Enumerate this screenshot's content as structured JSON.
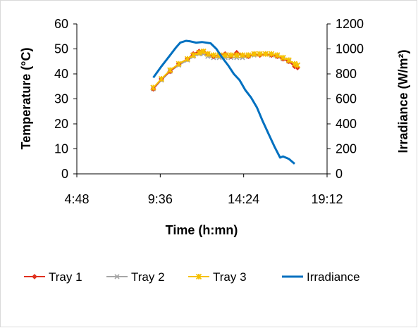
{
  "colors": {
    "tray1": "#E0301E",
    "tray2": "#A6A6A6",
    "tray3": "#F6C100",
    "irradiance": "#0070C0",
    "axis": "#000000"
  },
  "chart_data": {
    "type": "line",
    "xlabel": "Time (h:mn)",
    "ylabel_left": "Temperature (°C)",
    "ylabel_right": "Irradiance (W/m²)",
    "xlim": [
      "4:48",
      "19:12"
    ],
    "x_ticks": [
      "4:48",
      "9:36",
      "14:24",
      "19:12"
    ],
    "ylim_left": [
      0,
      60
    ],
    "y_ticks_left": [
      "0",
      "10",
      "20",
      "30",
      "40",
      "50",
      "60"
    ],
    "ylim_right": [
      0,
      1200
    ],
    "y_ticks_right": [
      "0",
      "200",
      "400",
      "600",
      "800",
      "1000",
      "1200"
    ],
    "grid": false,
    "legend": "bottom",
    "series": [
      {
        "name": "Tray 1",
        "axis": "left",
        "marker": "diamond",
        "x": [
          "9:12",
          "9:40",
          "10:10",
          "10:40",
          "11:10",
          "11:30",
          "11:50",
          "12:05",
          "12:20",
          "12:40",
          "13:00",
          "13:20",
          "13:40",
          "14:00",
          "14:20",
          "14:40",
          "15:00",
          "15:20",
          "15:40",
          "16:00",
          "16:20",
          "16:40",
          "17:00",
          "17:20",
          "17:30"
        ],
        "y": [
          34,
          38,
          41,
          44,
          46,
          48,
          49,
          49,
          48,
          47,
          47.5,
          48,
          47,
          48.5,
          47.5,
          47,
          48,
          47.5,
          48,
          47.5,
          47,
          46,
          45,
          43,
          42.5
        ]
      },
      {
        "name": "Tray 2",
        "axis": "left",
        "marker": "x",
        "x": [
          "9:12",
          "9:40",
          "10:10",
          "10:40",
          "11:10",
          "11:30",
          "11:50",
          "12:05",
          "12:20",
          "12:40",
          "13:00",
          "13:20",
          "13:40",
          "14:00",
          "14:20",
          "14:40",
          "15:00",
          "15:20",
          "15:40",
          "16:00",
          "16:20",
          "16:40",
          "17:00",
          "17:20",
          "17:30"
        ],
        "y": [
          34,
          37.5,
          41,
          43.5,
          45.5,
          47,
          48,
          48,
          47,
          46.5,
          46.5,
          46.5,
          46.5,
          46.5,
          46.5,
          47,
          47.5,
          48,
          48,
          47.5,
          47,
          46,
          45,
          44,
          43.5
        ]
      },
      {
        "name": "Tray 3",
        "axis": "left",
        "marker": "star",
        "x": [
          "9:12",
          "9:40",
          "10:10",
          "10:40",
          "11:10",
          "11:30",
          "11:50",
          "12:05",
          "12:20",
          "12:40",
          "13:00",
          "13:20",
          "13:40",
          "14:00",
          "14:20",
          "14:40",
          "15:00",
          "15:20",
          "15:40",
          "16:00",
          "16:20",
          "16:40",
          "17:00",
          "17:20",
          "17:30"
        ],
        "y": [
          34.5,
          38,
          41.5,
          44,
          46,
          47.5,
          48.5,
          49,
          48,
          47.5,
          47.5,
          47.5,
          47.5,
          47.5,
          47.5,
          47.5,
          48,
          48,
          48,
          48,
          47.5,
          46.5,
          45.5,
          44,
          43.5
        ]
      },
      {
        "name": "Irradiance",
        "axis": "right",
        "marker": "none",
        "x": [
          "9:12",
          "9:40",
          "10:10",
          "10:30",
          "10:45",
          "11:05",
          "11:20",
          "11:40",
          "12:00",
          "12:30",
          "12:50",
          "13:10",
          "13:30",
          "13:50",
          "14:10",
          "14:30",
          "14:50",
          "15:10",
          "15:30",
          "15:50",
          "16:10",
          "16:30",
          "16:40",
          "17:00",
          "17:20"
        ],
        "y": [
          770,
          860,
          950,
          1010,
          1050,
          1065,
          1060,
          1050,
          1055,
          1045,
          1000,
          930,
          870,
          800,
          750,
          670,
          610,
          530,
          420,
          320,
          220,
          130,
          140,
          120,
          80
        ]
      }
    ]
  }
}
